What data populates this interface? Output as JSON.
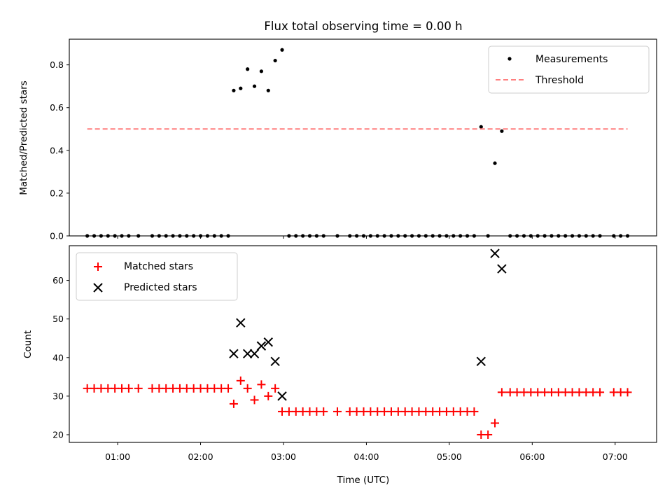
{
  "chart_data": [
    {
      "type": "scatter",
      "title": "Flux total observing time = 0.00 h",
      "xlabel": "",
      "ylabel": "Matched/Predicted stars",
      "ylim": [
        0,
        0.92
      ],
      "yticks": [
        0.0,
        0.2,
        0.4,
        0.6,
        0.8
      ],
      "ytick_labels": [
        "0.0",
        "0.2",
        "0.4",
        "0.6",
        "0.8"
      ],
      "xlim": [
        "00:25",
        "07:30"
      ],
      "xticks": [
        "01:00",
        "02:00",
        "03:00",
        "04:00",
        "05:00",
        "06:00",
        "07:00"
      ],
      "x_tick_labels_shown": false,
      "legend_position": "top-right",
      "grid": false,
      "series": [
        {
          "name": "Measurements",
          "kind": "scatter",
          "marker": "dot",
          "color": "#000000",
          "x": [
            "00:38",
            "00:43",
            "00:48",
            "00:53",
            "00:58",
            "01:03",
            "01:08",
            "01:15",
            "01:25",
            "01:30",
            "01:35",
            "01:40",
            "01:45",
            "01:50",
            "01:55",
            "02:00",
            "02:05",
            "02:10",
            "02:15",
            "02:20",
            "02:24",
            "02:29",
            "02:34",
            "02:39",
            "02:44",
            "02:49",
            "02:54",
            "02:59",
            "03:04",
            "03:09",
            "03:14",
            "03:19",
            "03:24",
            "03:29",
            "03:39",
            "03:48",
            "03:53",
            "03:58",
            "04:03",
            "04:08",
            "04:13",
            "04:18",
            "04:23",
            "04:28",
            "04:33",
            "04:38",
            "04:43",
            "04:48",
            "04:53",
            "04:58",
            "05:03",
            "05:08",
            "05:13",
            "05:18",
            "05:23",
            "05:28",
            "05:33",
            "05:38",
            "05:44",
            "05:49",
            "05:54",
            "05:59",
            "06:04",
            "06:09",
            "06:14",
            "06:19",
            "06:24",
            "06:29",
            "06:34",
            "06:39",
            "06:44",
            "06:49",
            "06:59",
            "07:04",
            "07:09"
          ],
          "y": [
            0,
            0,
            0,
            0,
            0,
            0,
            0,
            0,
            0,
            0,
            0,
            0,
            0,
            0,
            0,
            0,
            0,
            0,
            0,
            0,
            0.68,
            0.69,
            0.78,
            0.7,
            0.77,
            0.68,
            0.82,
            0.87,
            0,
            0,
            0,
            0,
            0,
            0,
            0,
            0,
            0,
            0,
            0,
            0,
            0,
            0,
            0,
            0,
            0,
            0,
            0,
            0,
            0,
            0,
            0,
            0,
            0,
            0,
            0.51,
            0,
            0.34,
            0.49,
            0,
            0,
            0,
            0,
            0,
            0,
            0,
            0,
            0,
            0,
            0,
            0,
            0,
            0,
            0,
            0,
            0
          ]
        },
        {
          "name": "Threshold",
          "kind": "line",
          "style": "dashed",
          "color": "#ff7f7f",
          "x": [
            "00:38",
            "07:09"
          ],
          "y": [
            0.5,
            0.5
          ]
        }
      ]
    },
    {
      "type": "scatter",
      "title": "",
      "xlabel": "Time (UTC)",
      "ylabel": "Count",
      "ylim": [
        18,
        69
      ],
      "yticks": [
        20,
        30,
        40,
        50,
        60
      ],
      "ytick_labels": [
        "20",
        "30",
        "40",
        "50",
        "60"
      ],
      "xlim": [
        "00:25",
        "07:30"
      ],
      "xticks": [
        "01:00",
        "02:00",
        "03:00",
        "04:00",
        "05:00",
        "06:00",
        "07:00"
      ],
      "xtick_labels": [
        "01:00",
        "02:00",
        "03:00",
        "04:00",
        "05:00",
        "06:00",
        "07:00"
      ],
      "legend_position": "top-left",
      "grid": false,
      "series": [
        {
          "name": "Matched stars",
          "kind": "scatter",
          "marker": "plus",
          "color": "#ff0000",
          "x": [
            "00:38",
            "00:43",
            "00:48",
            "00:53",
            "00:58",
            "01:03",
            "01:08",
            "01:15",
            "01:25",
            "01:30",
            "01:35",
            "01:40",
            "01:45",
            "01:50",
            "01:55",
            "02:00",
            "02:05",
            "02:10",
            "02:15",
            "02:20",
            "02:24",
            "02:29",
            "02:34",
            "02:39",
            "02:44",
            "02:49",
            "02:54",
            "02:59",
            "03:04",
            "03:09",
            "03:14",
            "03:19",
            "03:24",
            "03:29",
            "03:39",
            "03:48",
            "03:53",
            "03:58",
            "04:03",
            "04:08",
            "04:13",
            "04:18",
            "04:23",
            "04:28",
            "04:33",
            "04:38",
            "04:43",
            "04:48",
            "04:53",
            "04:58",
            "05:03",
            "05:08",
            "05:13",
            "05:18",
            "05:23",
            "05:28",
            "05:33",
            "05:38",
            "05:44",
            "05:49",
            "05:54",
            "05:59",
            "06:04",
            "06:09",
            "06:14",
            "06:19",
            "06:24",
            "06:29",
            "06:34",
            "06:39",
            "06:44",
            "06:49",
            "06:59",
            "07:04",
            "07:09"
          ],
          "y": [
            32,
            32,
            32,
            32,
            32,
            32,
            32,
            32,
            32,
            32,
            32,
            32,
            32,
            32,
            32,
            32,
            32,
            32,
            32,
            32,
            28,
            34,
            32,
            29,
            33,
            30,
            32,
            26,
            26,
            26,
            26,
            26,
            26,
            26,
            26,
            26,
            26,
            26,
            26,
            26,
            26,
            26,
            26,
            26,
            26,
            26,
            26,
            26,
            26,
            26,
            26,
            26,
            26,
            26,
            20,
            20,
            23,
            31,
            31,
            31,
            31,
            31,
            31,
            31,
            31,
            31,
            31,
            31,
            31,
            31,
            31,
            31,
            31,
            31,
            31
          ]
        },
        {
          "name": "Predicted stars",
          "kind": "scatter",
          "marker": "x",
          "color": "#000000",
          "x": [
            "02:24",
            "02:29",
            "02:34",
            "02:39",
            "02:44",
            "02:49",
            "02:54",
            "02:59",
            "05:23",
            "05:33",
            "05:38"
          ],
          "y": [
            41,
            49,
            41,
            41,
            43,
            44,
            39,
            30,
            39,
            67,
            63
          ]
        }
      ]
    }
  ]
}
